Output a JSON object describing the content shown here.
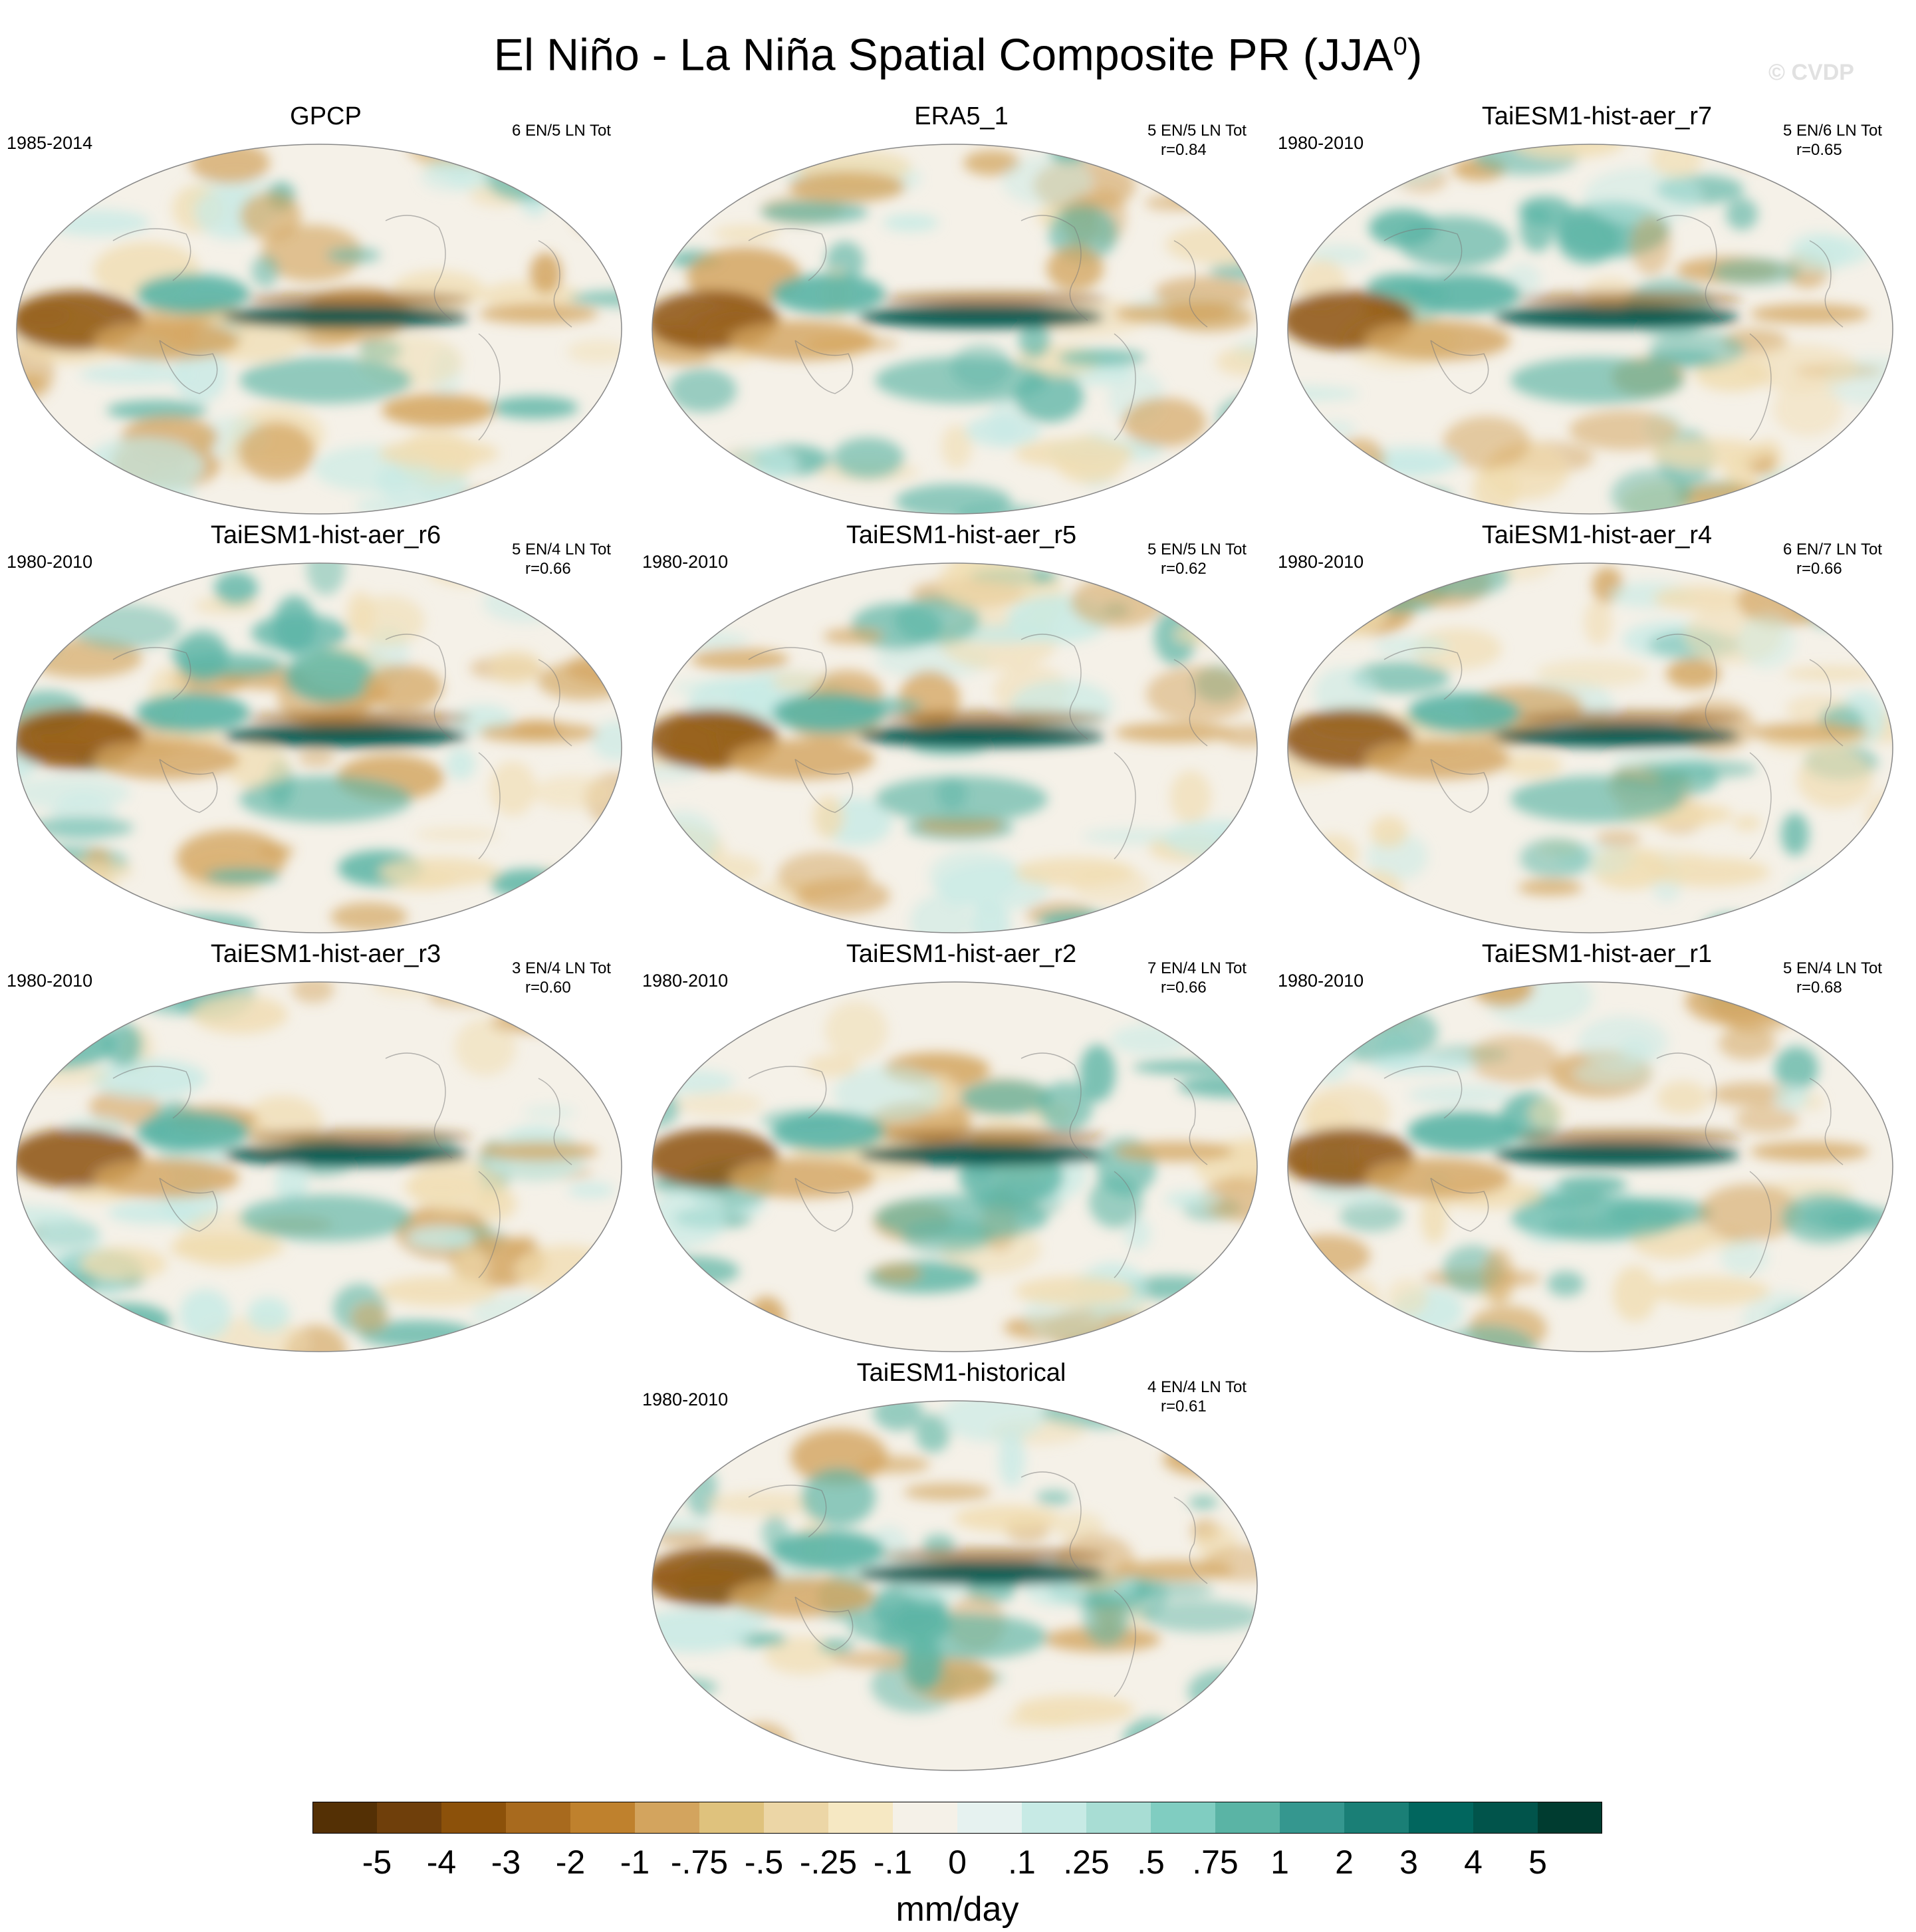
{
  "figure": {
    "title": "El Niño - La Niña Spatial Composite PR (JJA",
    "title_superscript": "0",
    "title_close": ")",
    "watermark": "© CVDP"
  },
  "panels": [
    {
      "name": "GPCP",
      "period": "1985-2014",
      "counts": "6 EN/5 LN Tot",
      "r": ""
    },
    {
      "name": "ERA5_1",
      "period": "",
      "counts": "5 EN/5 LN Tot",
      "r": "r=0.84"
    },
    {
      "name": "TaiESM1-hist-aer_r7",
      "period": "1980-2010",
      "counts": "5 EN/6 LN Tot",
      "r": "r=0.65"
    },
    {
      "name": "TaiESM1-hist-aer_r6",
      "period": "1980-2010",
      "counts": "5 EN/4 LN Tot",
      "r": "r=0.66"
    },
    {
      "name": "TaiESM1-hist-aer_r5",
      "period": "1980-2010",
      "counts": "5 EN/5 LN Tot",
      "r": "r=0.62"
    },
    {
      "name": "TaiESM1-hist-aer_r4",
      "period": "1980-2010",
      "counts": "6 EN/7 LN Tot",
      "r": "r=0.66"
    },
    {
      "name": "TaiESM1-hist-aer_r3",
      "period": "1980-2010",
      "counts": "3 EN/4 LN Tot",
      "r": "r=0.60"
    },
    {
      "name": "TaiESM1-hist-aer_r2",
      "period": "1980-2010",
      "counts": "7 EN/4 LN Tot",
      "r": "r=0.66"
    },
    {
      "name": "TaiESM1-hist-aer_r1",
      "period": "1980-2010",
      "counts": "5 EN/4 LN Tot",
      "r": "r=0.68"
    },
    {
      "name": "TaiESM1-historical",
      "period": "1980-2010",
      "counts": "4 EN/4 LN Tot",
      "r": "r=0.61"
    }
  ],
  "colorbar": {
    "unit": "mm/day",
    "labels": [
      "-5",
      "-4",
      "-3",
      "-2",
      "-1",
      "-.75",
      "-.5",
      "-.25",
      "-.1",
      "0",
      ".1",
      ".25",
      ".5",
      ".75",
      "1",
      "2",
      "3",
      "4",
      "5"
    ],
    "colors": [
      "#543005",
      "#6f3f0b",
      "#8c510a",
      "#a86a1e",
      "#bf812d",
      "#d3a45e",
      "#dfc27d",
      "#ecd6a6",
      "#f6e8c3",
      "#f5f1e8",
      "#e6f2f0",
      "#c7eae5",
      "#a8ddd4",
      "#80cdc1",
      "#5ab4a5",
      "#35978f",
      "#1a7f76",
      "#01665e",
      "#01544b",
      "#003c30"
    ]
  },
  "map_colors": {
    "dry_strong": "#8c510a",
    "dry": "#d3a45e",
    "dry_light": "#f0dcb0",
    "neutral": "#f5f1e8",
    "wet_light": "#c7eae5",
    "wet": "#5ab4a5",
    "wet_strong": "#01544b",
    "coast": "#7a7a7a",
    "border": "#888888"
  }
}
